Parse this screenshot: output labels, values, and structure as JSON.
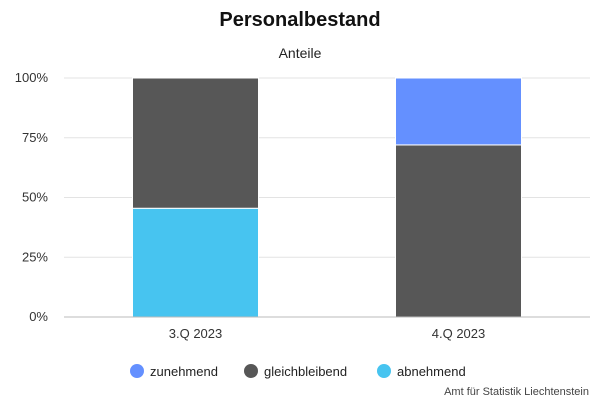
{
  "chart_data": {
    "type": "bar",
    "stacked": true,
    "title": "Personalbestand",
    "subtitle": "Anteile",
    "xlabel": "",
    "ylabel": "",
    "categories": [
      "3.Q 2023",
      "4.Q 2023"
    ],
    "series": [
      {
        "name": "abnehmend",
        "color": "#47c4f0",
        "values": [
          45.5,
          0
        ]
      },
      {
        "name": "gleichbleibend",
        "color": "#575757",
        "values": [
          54.5,
          72
        ]
      },
      {
        "name": "zunehmend",
        "color": "#6490ff",
        "values": [
          0,
          28
        ]
      }
    ],
    "ylim": [
      0,
      100
    ],
    "y_ticks": [
      "0%",
      "25%",
      "50%",
      "75%",
      "100%"
    ],
    "grid": true,
    "legend_position": "bottom",
    "legend_order": [
      "zunehmend",
      "gleichbleibend",
      "abnehmend"
    ],
    "credit": "Amt für Statistik Liechtenstein"
  }
}
